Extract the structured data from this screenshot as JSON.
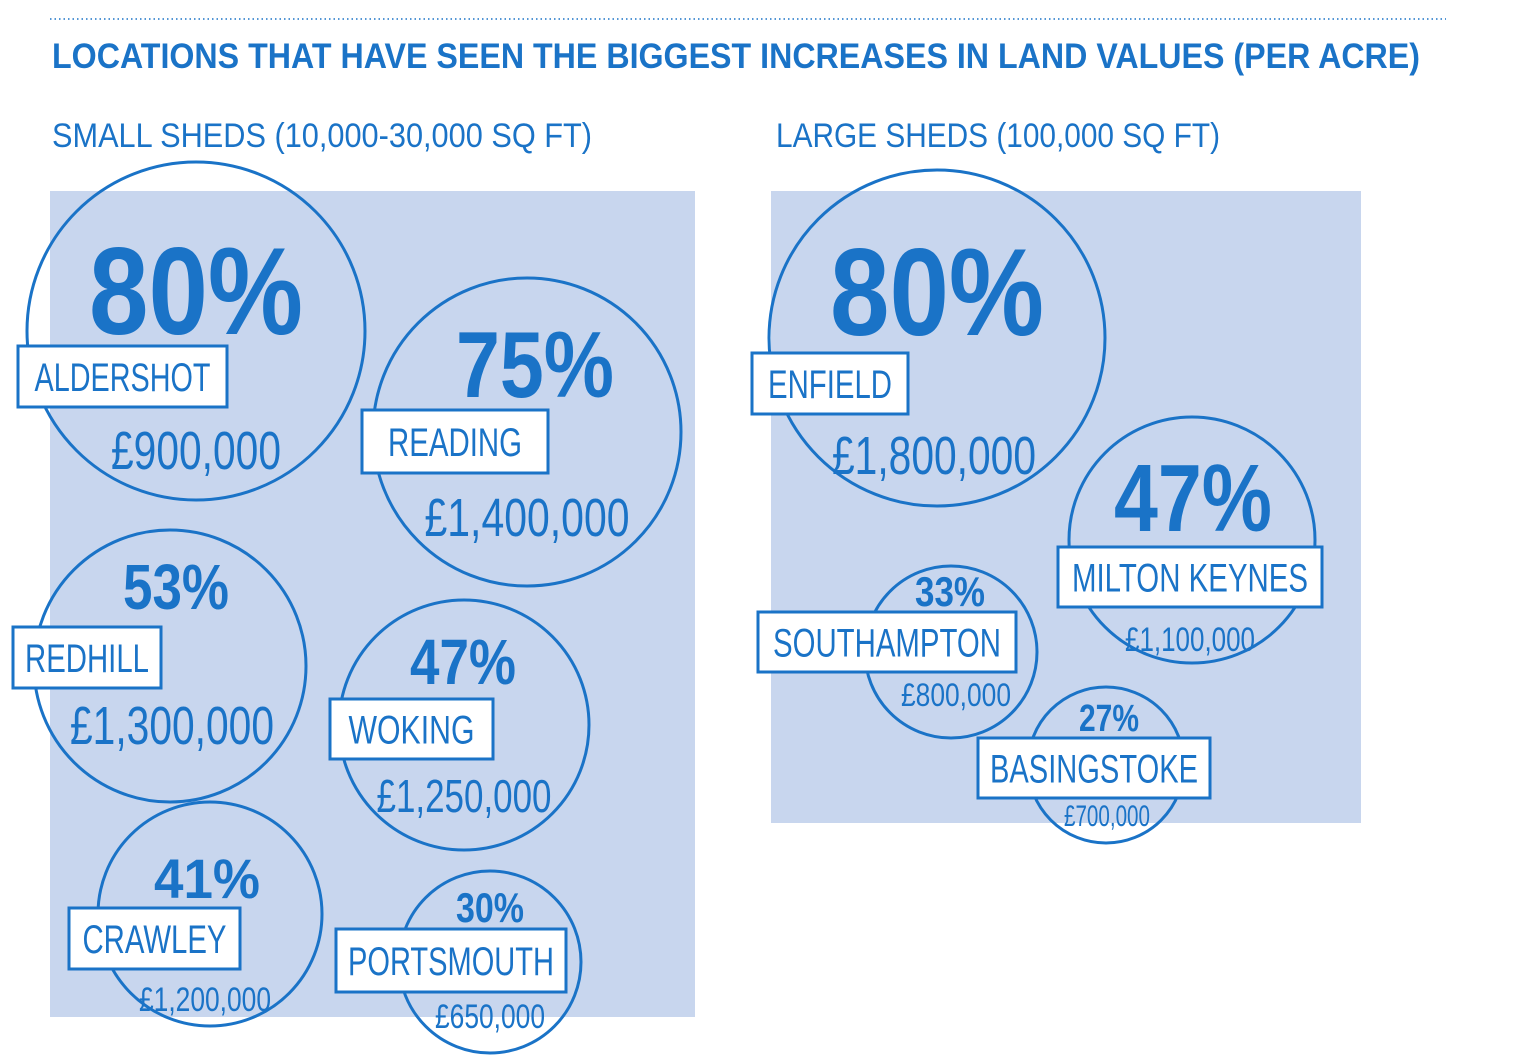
{
  "title": "LOCATIONS THAT HAVE SEEN THE BIGGEST INCREASES IN LAND VALUES (PER ACRE)",
  "colors": {
    "accent": "#1a73c7",
    "panel": "#c8d6ee",
    "background": "#ffffff"
  },
  "chart_data": [
    {
      "type": "bubble",
      "title": "SMALL SHEDS (10,000-30,000 SQ FT)",
      "items": [
        {
          "location": "ALDERSHOT",
          "increase": "80%",
          "increase_value": 80,
          "price": "£900,000",
          "price_value": 900000
        },
        {
          "location": "READING",
          "increase": "75%",
          "increase_value": 75,
          "price": "£1,400,000",
          "price_value": 1400000
        },
        {
          "location": "REDHILL",
          "increase": "53%",
          "increase_value": 53,
          "price": "£1,300,000",
          "price_value": 1300000
        },
        {
          "location": "WOKING",
          "increase": "47%",
          "increase_value": 47,
          "price": "£1,250,000",
          "price_value": 1250000
        },
        {
          "location": "CRAWLEY",
          "increase": "41%",
          "increase_value": 41,
          "price": "£1,200,000",
          "price_value": 1200000
        },
        {
          "location": "PORTSMOUTH",
          "increase": "30%",
          "increase_value": 30,
          "price": "£650,000",
          "price_value": 650000
        }
      ]
    },
    {
      "type": "bubble",
      "title": "LARGE SHEDS (100,000 SQ FT)",
      "items": [
        {
          "location": "ENFIELD",
          "increase": "80%",
          "increase_value": 80,
          "price": "£1,800,000",
          "price_value": 1800000
        },
        {
          "location": "MILTON KEYNES",
          "increase": "47%",
          "increase_value": 47,
          "price": "£1,100,000",
          "price_value": 1100000
        },
        {
          "location": "SOUTHAMPTON",
          "increase": "33%",
          "increase_value": 33,
          "price": "£800,000",
          "price_value": 800000
        },
        {
          "location": "BASINGSTOKE",
          "increase": "27%",
          "increase_value": 27,
          "price": "£700,000",
          "price_value": 700000
        }
      ]
    }
  ]
}
